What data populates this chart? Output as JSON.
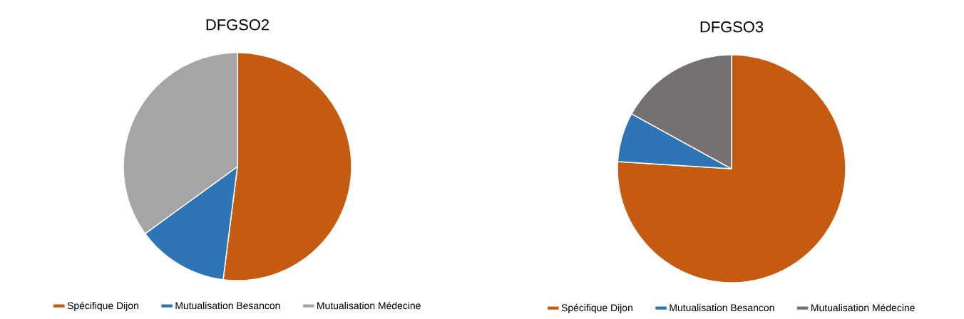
{
  "chart_data": [
    {
      "type": "pie",
      "title": "DFGSO2",
      "categories": [
        "Spécifique Dijon",
        "Mutualisation Besancon",
        "Mutualisation Médecine"
      ],
      "values": [
        52,
        13,
        35
      ],
      "colors": [
        "#c55a11",
        "#2e75b6",
        "#a5a5a5"
      ],
      "legend": "bottom"
    },
    {
      "type": "pie",
      "title": "DFGSO3",
      "categories": [
        "Spécifique Dijon",
        "Mutualisation Besancon",
        "Mutualisation Médecine"
      ],
      "values": [
        76,
        7,
        17
      ],
      "colors": [
        "#c55a11",
        "#2e75b6",
        "#767171"
      ],
      "legend": "bottom"
    }
  ]
}
